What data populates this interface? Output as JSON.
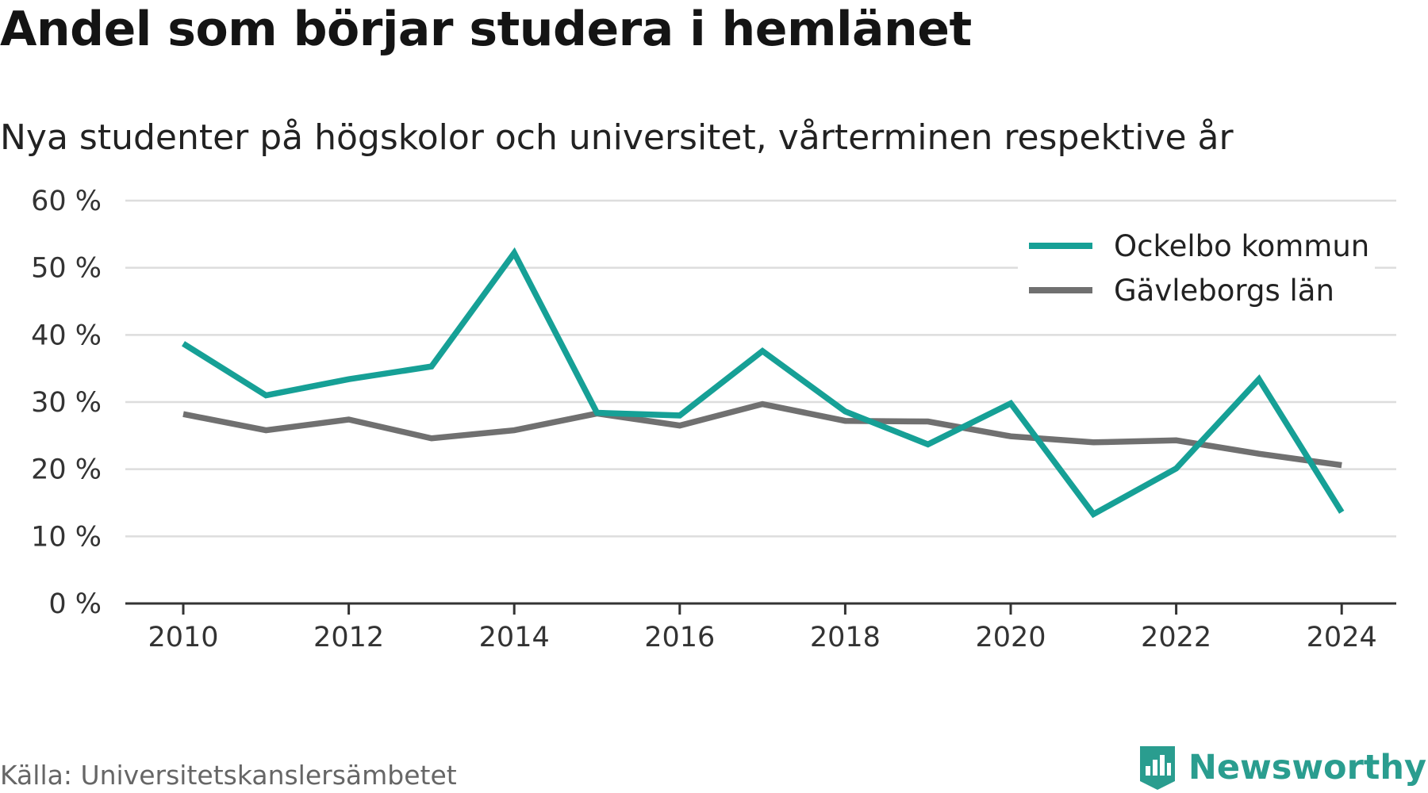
{
  "title": "Andel som börjar studera i hemlänet",
  "subtitle": "Nya studenter på högskolor och universitet, vårterminen respektive år",
  "source": "Källa: Universitetskanslersämbetet",
  "brand": {
    "name": "Newsworthy",
    "icon": "newsworthy-logo-icon"
  },
  "colors": {
    "ockelbo": "#16a096",
    "gavleborg": "#707070",
    "grid": "#dddddd",
    "axis": "#333333"
  },
  "chart_data": {
    "type": "line",
    "title": "Andel som börjar studera i hemlänet",
    "subtitle": "Nya studenter på högskolor och universitet, vårterminen respektive år",
    "x": [
      2010,
      2011,
      2012,
      2013,
      2014,
      2015,
      2016,
      2017,
      2018,
      2019,
      2020,
      2021,
      2022,
      2023,
      2024
    ],
    "x_tick_labels": [
      "2010",
      "2012",
      "2014",
      "2016",
      "2018",
      "2020",
      "2022",
      "2024"
    ],
    "y_tick_labels": [
      "0 %",
      "10 %",
      "20 %",
      "30 %",
      "40 %",
      "50 %",
      "60 %"
    ],
    "ylim": [
      0,
      60
    ],
    "y_unit": "%",
    "grid": true,
    "legend_position": "top-right",
    "series": [
      {
        "name": "Ockelbo kommun",
        "color": "#16a096",
        "values": [
          38.7,
          31.0,
          33.4,
          35.3,
          52.2,
          28.4,
          28.0,
          37.6,
          28.6,
          23.7,
          29.8,
          13.3,
          20.1,
          33.4,
          13.6
        ]
      },
      {
        "name": "Gävleborgs län",
        "color": "#707070",
        "values": [
          28.2,
          25.8,
          27.4,
          24.6,
          25.8,
          28.3,
          26.5,
          29.7,
          27.2,
          27.1,
          24.9,
          24.0,
          24.3,
          22.3,
          20.6
        ]
      }
    ]
  }
}
